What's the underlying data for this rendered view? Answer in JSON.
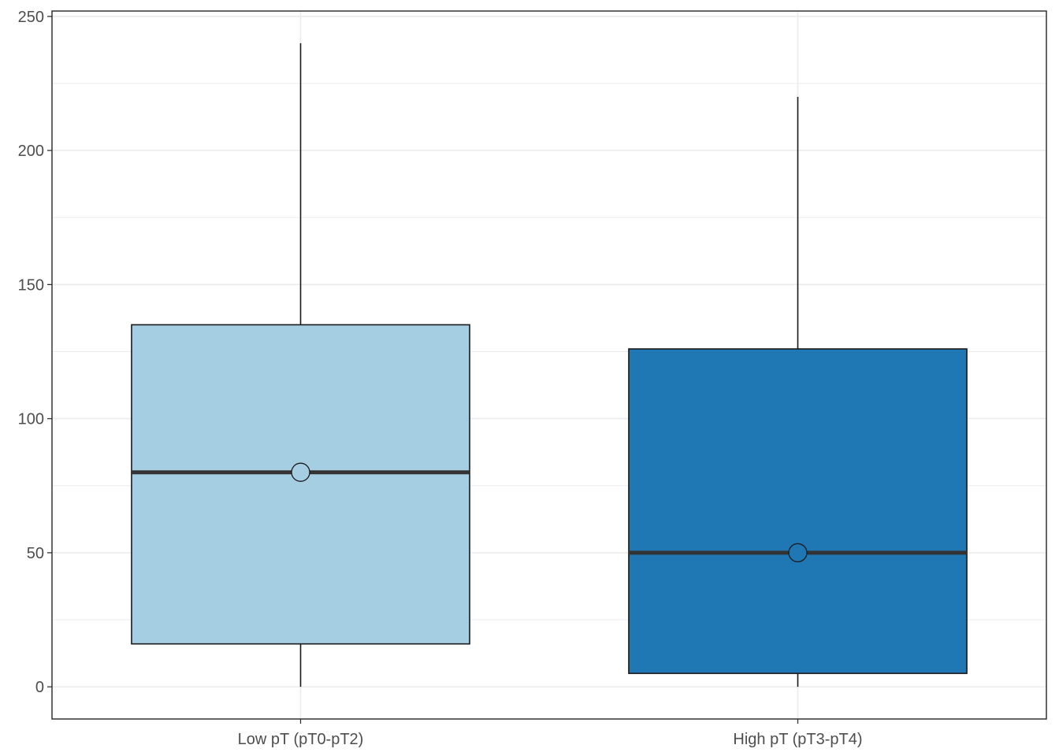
{
  "chart_data": {
    "type": "boxplot",
    "title": "",
    "xlabel": "",
    "ylabel": "",
    "ylim": [
      -12,
      252
    ],
    "y_ticks": [
      0,
      50,
      100,
      150,
      200,
      250
    ],
    "y_minor_ticks": [
      25,
      75,
      125,
      175,
      225
    ],
    "grid": true,
    "legend": "none",
    "categories": [
      "Low pT (pT0-pT2)",
      "High pT (pT3-pT4)"
    ],
    "boxes": [
      {
        "category": "Low pT (pT0-pT2)",
        "min": 0,
        "q1": 16,
        "median": 80,
        "mean": 80,
        "q3": 135,
        "max": 240,
        "fill": "#a6cee3"
      },
      {
        "category": "High pT (pT3-pT4)",
        "min": 0,
        "q1": 5,
        "median": 50,
        "mean": 50,
        "q3": 126,
        "max": 220,
        "fill": "#1f78b4"
      }
    ],
    "colors": {
      "box_stroke": "#1a1a1a",
      "median_stroke": "#333333",
      "grid": "#ebebeb",
      "panel_border": "#333333",
      "tick_text": "#4d4d4d"
    }
  }
}
